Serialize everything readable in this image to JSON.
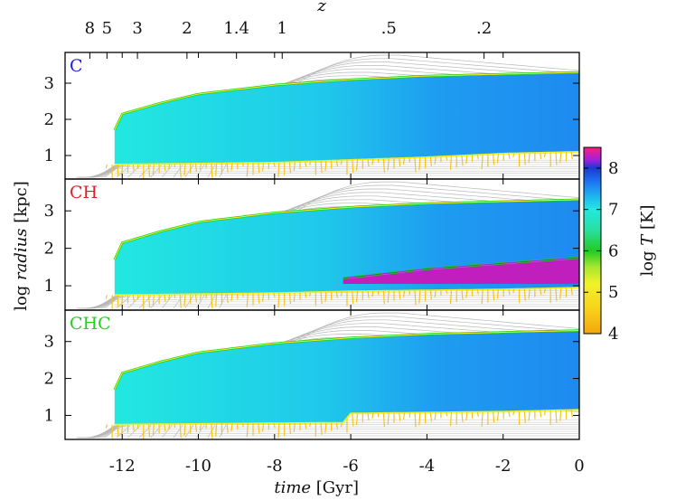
{
  "chart_data": {
    "type": "heatmap",
    "title": "",
    "panels": [
      {
        "label": "C",
        "label_color": "#1f1fd6",
        "outer_radius_log_kpc": [
          {
            "t": -12.2,
            "r": 1.7
          },
          {
            "t": -12.0,
            "r": 2.15
          },
          {
            "t": -11.0,
            "r": 2.45
          },
          {
            "t": -10.0,
            "r": 2.7
          },
          {
            "t": -8.0,
            "r": 2.95
          },
          {
            "t": -6.0,
            "r": 3.1
          },
          {
            "t": -4.0,
            "r": 3.2
          },
          {
            "t": -2.0,
            "r": 3.25
          },
          {
            "t": 0.0,
            "r": 3.3
          }
        ],
        "inner_radius_log_kpc": [
          {
            "t": -12.0,
            "r": 0.75
          },
          {
            "t": -8.0,
            "r": 0.8
          },
          {
            "t": -4.0,
            "r": 0.95
          },
          {
            "t": -2.0,
            "r": 1.05
          },
          {
            "t": 0.0,
            "r": 1.1
          }
        ],
        "hot_core": null
      },
      {
        "label": "CH",
        "label_color": "#e02020",
        "outer_radius_log_kpc": [
          {
            "t": -12.2,
            "r": 1.7
          },
          {
            "t": -12.0,
            "r": 2.15
          },
          {
            "t": -11.0,
            "r": 2.45
          },
          {
            "t": -10.0,
            "r": 2.7
          },
          {
            "t": -8.0,
            "r": 2.95
          },
          {
            "t": -6.0,
            "r": 3.1
          },
          {
            "t": -4.0,
            "r": 3.2
          },
          {
            "t": -2.0,
            "r": 3.25
          },
          {
            "t": 0.0,
            "r": 3.3
          }
        ],
        "inner_radius_log_kpc": [
          {
            "t": -12.0,
            "r": 0.75
          },
          {
            "t": -8.0,
            "r": 0.8
          },
          {
            "t": -6.0,
            "r": 0.85
          },
          {
            "t": -2.0,
            "r": 0.9
          },
          {
            "t": 0.0,
            "r": 0.95
          }
        ],
        "hot_core": {
          "start_t": -6.2,
          "top_log_kpc": [
            {
              "t": -6.2,
              "r": 1.2
            },
            {
              "t": -4.0,
              "r": 1.45
            },
            {
              "t": -2.0,
              "r": 1.6
            },
            {
              "t": 0.0,
              "r": 1.75
            }
          ],
          "bottom_log_kpc": 1.05,
          "log_T": 8.3
        }
      },
      {
        "label": "CHC",
        "label_color": "#22d022",
        "outer_radius_log_kpc": [
          {
            "t": -12.2,
            "r": 1.7
          },
          {
            "t": -12.0,
            "r": 2.15
          },
          {
            "t": -11.0,
            "r": 2.45
          },
          {
            "t": -10.0,
            "r": 2.7
          },
          {
            "t": -8.0,
            "r": 2.95
          },
          {
            "t": -6.0,
            "r": 3.1
          },
          {
            "t": -4.0,
            "r": 3.2
          },
          {
            "t": -2.0,
            "r": 3.25
          },
          {
            "t": 0.0,
            "r": 3.3
          }
        ],
        "inner_radius_log_kpc": [
          {
            "t": -12.0,
            "r": 0.75
          },
          {
            "t": -6.2,
            "r": 0.8
          },
          {
            "t": -6.0,
            "r": 1.05
          },
          {
            "t": -2.0,
            "r": 1.1
          },
          {
            "t": 0.0,
            "r": 1.15
          }
        ],
        "hot_core": null
      }
    ],
    "x_axis": {
      "label_italic": "time",
      "label_unit": "[Gyr]",
      "range": [
        -13.5,
        0
      ],
      "ticks": [
        {
          "value": -12,
          "label": "-12"
        },
        {
          "value": -10,
          "label": "-10"
        },
        {
          "value": -8,
          "label": "-8"
        },
        {
          "value": -6,
          "label": "-6"
        },
        {
          "value": -4,
          "label": "-4"
        },
        {
          "value": -2,
          "label": "-2"
        },
        {
          "value": 0,
          "label": "0"
        }
      ]
    },
    "top_axis": {
      "label": "z",
      "ticks": [
        {
          "value": 8,
          "label": "8",
          "t": -12.85
        },
        {
          "value": 5,
          "label": "5",
          "t": -12.4
        },
        {
          "value": 3,
          "label": "3",
          "t": -11.6
        },
        {
          "value": 2,
          "label": "2",
          "t": -10.3
        },
        {
          "value": 1.4,
          "label": "1.4",
          "t": -9.0
        },
        {
          "value": 1,
          "label": "1",
          "t": -7.8
        },
        {
          "value": 0.5,
          "label": ".5",
          "t": -5.0
        },
        {
          "value": 0.2,
          "label": ".2",
          "t": -2.5
        }
      ]
    },
    "y_axis": {
      "label_prefix": "log",
      "label_italic": "radius",
      "label_unit": "[kpc]",
      "range": [
        0.35,
        3.85
      ],
      "ticks": [
        {
          "value": 1,
          "label": "1"
        },
        {
          "value": 2,
          "label": "2"
        },
        {
          "value": 3,
          "label": "3"
        }
      ]
    },
    "colorbar": {
      "label_prefix": "log",
      "label_italic": "T",
      "label_unit": "[K]",
      "range": [
        4,
        8.5
      ],
      "ticks": [
        {
          "value": 4,
          "label": "4"
        },
        {
          "value": 5,
          "label": "5"
        },
        {
          "value": 6,
          "label": "6"
        },
        {
          "value": 7,
          "label": "7"
        },
        {
          "value": 8,
          "label": "8"
        }
      ],
      "stops": [
        {
          "value": 4.0,
          "color": "#f5a60c"
        },
        {
          "value": 4.6,
          "color": "#f8d21c"
        },
        {
          "value": 5.2,
          "color": "#f2f228"
        },
        {
          "value": 5.6,
          "color": "#a8e830"
        },
        {
          "value": 6.0,
          "color": "#22cc22"
        },
        {
          "value": 6.5,
          "color": "#28e0a0"
        },
        {
          "value": 7.0,
          "color": "#22e8e0"
        },
        {
          "value": 7.3,
          "color": "#1eb8f0"
        },
        {
          "value": 7.7,
          "color": "#1e6ef0"
        },
        {
          "value": 8.0,
          "color": "#1a3ad0"
        },
        {
          "value": 8.2,
          "color": "#a020e0"
        },
        {
          "value": 8.5,
          "color": "#ff1c78"
        }
      ]
    },
    "background_gas_log_T": 7.05,
    "grid": false
  }
}
